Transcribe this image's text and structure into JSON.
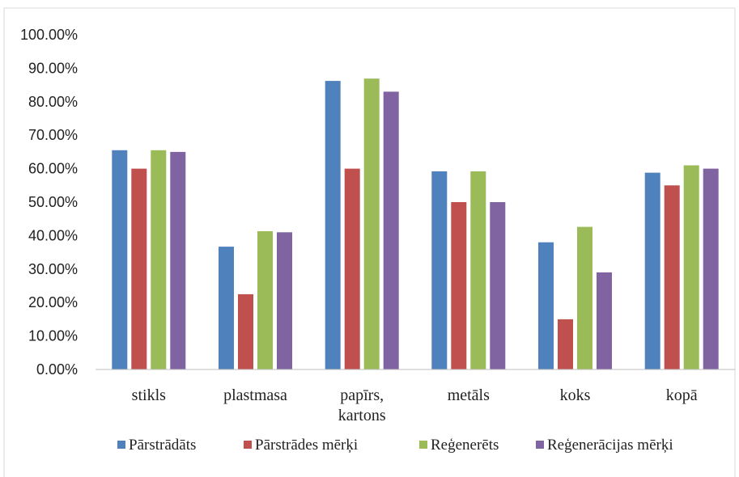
{
  "chart_data": {
    "type": "bar",
    "categories": [
      "stikls",
      "plastmasa",
      "papīrs, kartons",
      "metāls",
      "koks",
      "kopā"
    ],
    "category_lines": [
      [
        "stikls"
      ],
      [
        "plastmasa"
      ],
      [
        "papīrs,",
        "kartons"
      ],
      [
        "metāls"
      ],
      [
        "koks"
      ],
      [
        "kopā"
      ]
    ],
    "series": [
      {
        "name": "Pārstrādāts",
        "color": "#4f81bd",
        "values": [
          65.5,
          36.7,
          86.2,
          59.2,
          38.0,
          58.8
        ]
      },
      {
        "name": "Pārstrādes mērķi",
        "color": "#c0504d",
        "values": [
          60.0,
          22.5,
          60.0,
          50.0,
          15.0,
          55.0
        ]
      },
      {
        "name": "Reģenerēts",
        "color": "#9bbb59",
        "values": [
          65.5,
          41.3,
          86.9,
          59.2,
          42.6,
          61.0
        ]
      },
      {
        "name": "Reģenerācijas mērķi",
        "color": "#8064a2",
        "values": [
          65.0,
          41.0,
          83.0,
          50.0,
          29.0,
          60.0
        ]
      }
    ],
    "ylim": [
      0,
      100
    ],
    "yticks": [
      "0.00%",
      "10.00%",
      "20.00%",
      "30.00%",
      "40.00%",
      "50.00%",
      "60.00%",
      "70.00%",
      "80.00%",
      "90.00%",
      "100.00%"
    ],
    "grid": false,
    "legend": "bottom",
    "title": "",
    "xlabel": "",
    "ylabel": ""
  }
}
